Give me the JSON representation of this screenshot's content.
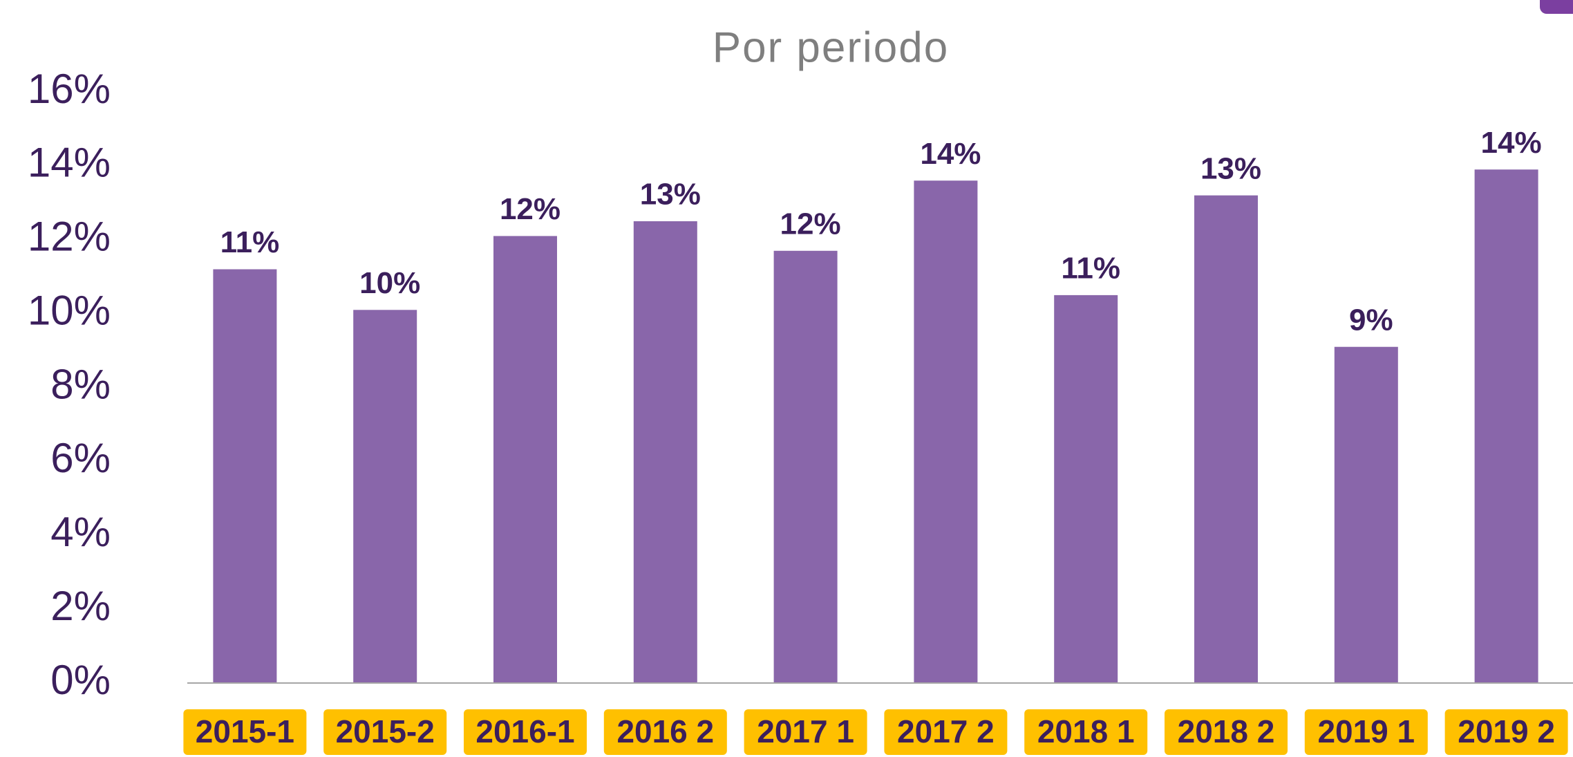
{
  "chart_data": {
    "type": "bar",
    "title": "Por periodo",
    "categories": [
      "2015-1",
      "2015-2",
      "2016-1",
      "2016 2",
      "2017 1",
      "2017 2",
      "2018 1",
      "2018 2",
      "2019 1",
      "2019 2"
    ],
    "values": [
      11.2,
      10.1,
      12.1,
      12.5,
      11.7,
      13.6,
      10.5,
      13.2,
      9.1,
      13.9
    ],
    "value_labels": [
      "11%",
      "10%",
      "12%",
      "13%",
      "12%",
      "14%",
      "11%",
      "13%",
      "9%",
      "14%"
    ],
    "color": "#8966aa",
    "ylim": [
      0,
      16
    ],
    "yticks": [
      {
        "value": 0,
        "label": "0%"
      },
      {
        "value": 2,
        "label": "2%"
      },
      {
        "value": 4,
        "label": "4%"
      },
      {
        "value": 6,
        "label": "6%"
      },
      {
        "value": 8,
        "label": "8%"
      },
      {
        "value": 10,
        "label": "10%"
      },
      {
        "value": 12,
        "label": "12%"
      },
      {
        "value": 14,
        "label": "14%"
      },
      {
        "value": 16,
        "label": "16%"
      }
    ],
    "grid": false
  }
}
